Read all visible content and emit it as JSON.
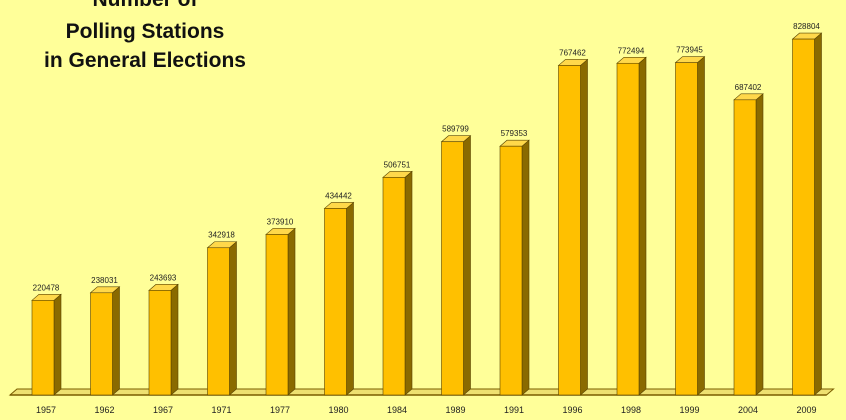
{
  "chart_data": {
    "type": "bar",
    "title_lines": [
      "Number of",
      "Polling Stations",
      "in General Elections"
    ],
    "categories": [
      "1957",
      "1962",
      "1967",
      "1971",
      "1977",
      "1980",
      "1984",
      "1989",
      "1991",
      "1996",
      "1998",
      "1999",
      "2004",
      "2009"
    ],
    "values": [
      220478,
      238031,
      243693,
      342918,
      373910,
      434442,
      506751,
      589799,
      579353,
      767462,
      772494,
      773945,
      687402,
      828804
    ],
    "value_labels": [
      "220478",
      "238031",
      "243693",
      "342918",
      "373910",
      "434442",
      "506751",
      "589799",
      "579353",
      "767462",
      "772494",
      "773945",
      "687402",
      "828804"
    ],
    "ylim": [
      0,
      850000
    ],
    "grid": false,
    "legend": "none",
    "xlabel": "",
    "ylabel": ""
  },
  "colors": {
    "background": "#ffff99",
    "bar_front": "#ffc000",
    "bar_side": "#8a6a00",
    "bar_top": "#ffd84a",
    "axis": "#7a5c00"
  }
}
